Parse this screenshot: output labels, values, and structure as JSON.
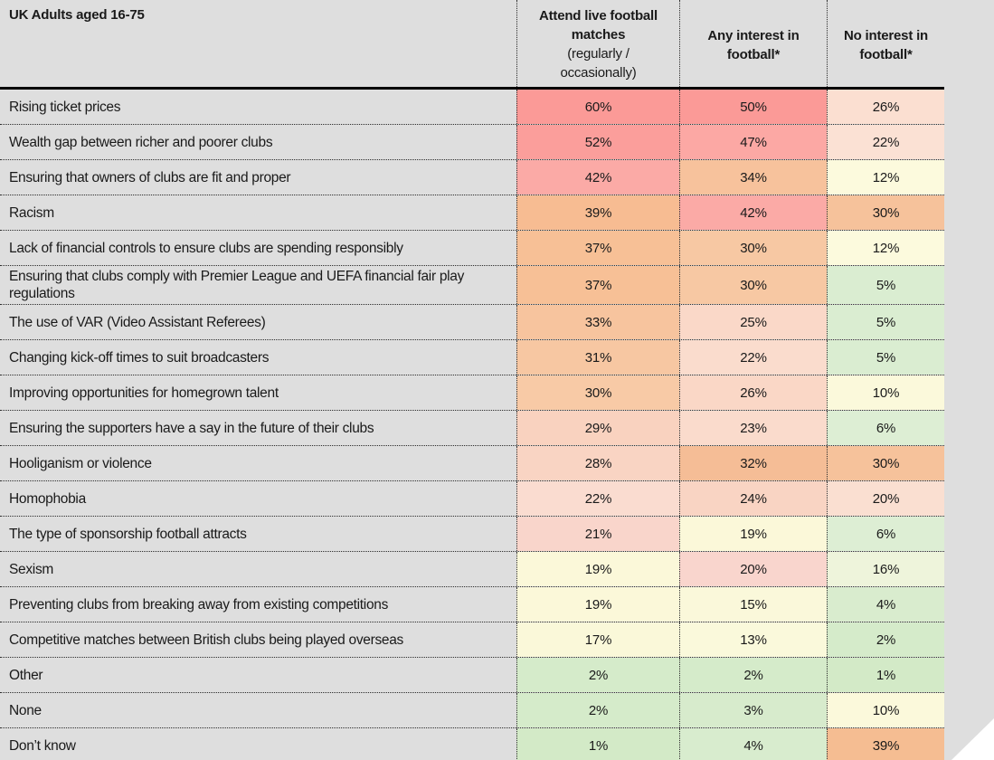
{
  "colors": {
    "background": "#dedede",
    "header_rule": "#000000",
    "grid_dots": "#2b2b2b",
    "text": "#1a1a1a",
    "corner_fold": "#ffffff"
  },
  "chart_data": {
    "type": "heatmap",
    "title": "UK Adults aged 16-75",
    "value_suffix": "%",
    "legend": "none",
    "columns": [
      {
        "name": "attend-live-matches",
        "bold": "Attend live football\nmatches",
        "note": "(regularly /\noccasionally)"
      },
      {
        "name": "any-interest",
        "bold": "Any interest in\nfootball*",
        "note": ""
      },
      {
        "name": "no-interest",
        "bold": "No interest in\nfootball*",
        "note": ""
      }
    ],
    "rows": [
      {
        "label": "Rising ticket prices",
        "values": [
          60,
          50,
          26
        ],
        "colors": [
          "#fb9a97",
          "#fb9a97",
          "#fbdfd1"
        ]
      },
      {
        "label": "Wealth gap between richer and poorer clubs",
        "values": [
          52,
          47,
          22
        ],
        "colors": [
          "#fb9e9b",
          "#fca8a4",
          "#fbe1d4"
        ]
      },
      {
        "label": "Ensuring that owners of clubs are fit and proper",
        "values": [
          42,
          34,
          12
        ],
        "colors": [
          "#fbaaa6",
          "#f7c29c",
          "#fcfadd"
        ]
      },
      {
        "label": "Racism",
        "values": [
          39,
          42,
          30
        ],
        "colors": [
          "#f7bc92",
          "#fbaaa6",
          "#f6c29b"
        ]
      },
      {
        "label": "Lack of financial controls to ensure clubs are spending responsibly",
        "values": [
          37,
          30,
          12
        ],
        "colors": [
          "#f7c096",
          "#f7c8a3",
          "#fcfadd"
        ]
      },
      {
        "label": "Ensuring that clubs comply with Premier League and UEFA financial fair play regulations",
        "values": [
          37,
          30,
          5
        ],
        "colors": [
          "#f7c096",
          "#f7c8a3",
          "#daedd1"
        ]
      },
      {
        "label": "The use of VAR (Video Assistant Referees)",
        "values": [
          33,
          25,
          5
        ],
        "colors": [
          "#f7c49e",
          "#fad8c8",
          "#daedd1"
        ]
      },
      {
        "label": "Changing kick-off times to suit broadcasters",
        "values": [
          31,
          22,
          5
        ],
        "colors": [
          "#f7c7a2",
          "#fadccd",
          "#daedd1"
        ]
      },
      {
        "label": "Improving opportunities for homegrown talent",
        "values": [
          30,
          26,
          10
        ],
        "colors": [
          "#f8caa6",
          "#fad7c6",
          "#fbf9db"
        ]
      },
      {
        "label": "Ensuring the supporters have a say in the future of their clubs",
        "values": [
          29,
          23,
          6
        ],
        "colors": [
          "#f9d2bf",
          "#fadbcc",
          "#ddeed4"
        ]
      },
      {
        "label": "Hooliganism or violence",
        "values": [
          28,
          32,
          30
        ],
        "colors": [
          "#f9d4c3",
          "#f5bd96",
          "#f6c29b"
        ]
      },
      {
        "label": "Homophobia",
        "values": [
          22,
          24,
          20
        ],
        "colors": [
          "#fadcd0",
          "#f9d4c3",
          "#fadfd1"
        ]
      },
      {
        "label": "The type of sponsorship football attracts",
        "values": [
          21,
          19,
          6
        ],
        "colors": [
          "#f9d5cb",
          "#fbf8d9",
          "#ddeed4"
        ]
      },
      {
        "label": "Sexism",
        "values": [
          19,
          20,
          16
        ],
        "colors": [
          "#fbf8d9",
          "#f9d5cd",
          "#eef4db"
        ]
      },
      {
        "label": "Preventing clubs from breaking away from existing competitions",
        "values": [
          19,
          15,
          4
        ],
        "colors": [
          "#fbf8d9",
          "#faf8da",
          "#d9ecce"
        ]
      },
      {
        "label": "Competitive matches between British clubs being played overseas",
        "values": [
          17,
          13,
          2
        ],
        "colors": [
          "#faf8d9",
          "#faf9db",
          "#d5ebca"
        ]
      },
      {
        "label": "Other",
        "values": [
          2,
          2,
          1
        ],
        "colors": [
          "#d5ebca",
          "#d5ebca",
          "#d3eac7"
        ]
      },
      {
        "label": "None",
        "values": [
          2,
          3,
          10
        ],
        "colors": [
          "#d5ebca",
          "#d7ebcc",
          "#fbf9db"
        ]
      },
      {
        "label": "Don’t know",
        "values": [
          1,
          4,
          39
        ],
        "colors": [
          "#d3eac7",
          "#d8ecce",
          "#f5bd92"
        ]
      }
    ]
  }
}
